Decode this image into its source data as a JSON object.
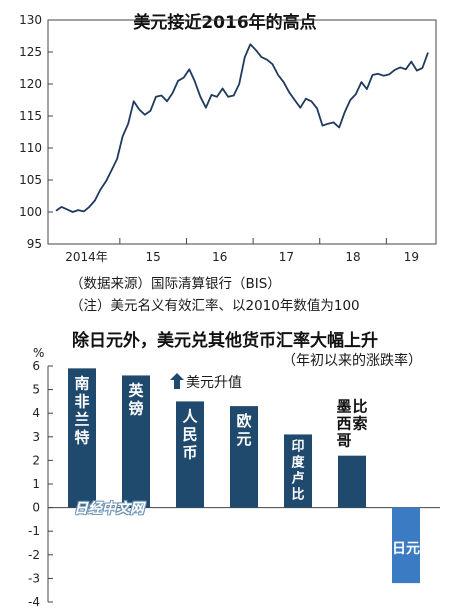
{
  "top_chart": {
    "title": "美元接近2016年的高点",
    "source_note": "（数据来源）国际清算银行（BIS）",
    "footnote": "（注）美元名义有效汇率、以2010年数值为100",
    "line_color": "#1f3a5c"
  },
  "bottom_chart": {
    "title": "除日元外，美元兑其他货币汇率大幅上升",
    "subtitle": "（年初以来的涨跌率）",
    "unit": "%",
    "up_note": "美元升值",
    "watermark": "日经中文网",
    "bar_color_positive": "#1f4a6e",
    "bar_color_negative": "#3b7bc4"
  },
  "chart_data": [
    {
      "type": "line",
      "title": "美元接近2016年的高点",
      "xlabel": "",
      "ylabel": "",
      "ylim": [
        95,
        130
      ],
      "yticks": [
        95,
        100,
        105,
        110,
        115,
        120,
        125,
        130
      ],
      "x_tick_labels": [
        "2014年",
        "15",
        "16",
        "17",
        "18",
        "19"
      ],
      "grid": false,
      "series": [
        {
          "name": "",
          "x": [
            "2014-01",
            "2014-02",
            "2014-03",
            "2014-04",
            "2014-05",
            "2014-06",
            "2014-07",
            "2014-08",
            "2014-09",
            "2014-10",
            "2014-11",
            "2014-12",
            "2015-01",
            "2015-02",
            "2015-03",
            "2015-04",
            "2015-05",
            "2015-06",
            "2015-07",
            "2015-08",
            "2015-09",
            "2015-10",
            "2015-11",
            "2015-12",
            "2016-01",
            "2016-02",
            "2016-03",
            "2016-04",
            "2016-05",
            "2016-06",
            "2016-07",
            "2016-08",
            "2016-09",
            "2016-10",
            "2016-11",
            "2016-12",
            "2017-01",
            "2017-02",
            "2017-03",
            "2017-04",
            "2017-05",
            "2017-06",
            "2017-07",
            "2017-08",
            "2017-09",
            "2017-10",
            "2017-11",
            "2017-12",
            "2018-01",
            "2018-02",
            "2018-03",
            "2018-04",
            "2018-05",
            "2018-06",
            "2018-07",
            "2018-08",
            "2018-09",
            "2018-10",
            "2018-11",
            "2018-12",
            "2019-01",
            "2019-02",
            "2019-03",
            "2019-04",
            "2019-05",
            "2019-06",
            "2019-07",
            "2019-08"
          ],
          "values": [
            100.2,
            100.8,
            100.4,
            100.0,
            100.3,
            100.1,
            100.8,
            101.8,
            103.5,
            104.8,
            106.5,
            108.3,
            111.8,
            113.8,
            117.3,
            116.0,
            115.2,
            115.8,
            118.0,
            118.2,
            117.3,
            118.6,
            120.5,
            121.0,
            122.3,
            120.4,
            118.0,
            116.3,
            118.3,
            118.0,
            119.3,
            118.0,
            118.2,
            120.0,
            124.2,
            126.2,
            125.3,
            124.2,
            123.8,
            123.1,
            121.4,
            120.3,
            118.7,
            117.5,
            116.3,
            117.7,
            117.3,
            116.2,
            113.5,
            113.8,
            114.0,
            113.2,
            115.6,
            117.5,
            118.4,
            120.3,
            119.2,
            121.4,
            121.6,
            121.3,
            121.5,
            122.2,
            122.6,
            122.3,
            123.5,
            122.1,
            122.5,
            124.9
          ]
        }
      ]
    },
    {
      "type": "bar",
      "title": "除日元外，美元兑其他货币汇率大幅上升",
      "subtitle": "（年初以来的涨跌率）",
      "ylabel": "%",
      "ylim": [
        -4,
        6
      ],
      "yticks": [
        6,
        5,
        4,
        3,
        2,
        1,
        0,
        -1,
        -2,
        -3,
        -4
      ],
      "categories": [
        "南非兰特",
        "英镑",
        "人民币",
        "欧元",
        "印度卢比",
        "墨比西索哥",
        "日元"
      ],
      "values": [
        5.9,
        5.6,
        4.5,
        4.3,
        3.1,
        2.2,
        -3.2
      ]
    }
  ]
}
